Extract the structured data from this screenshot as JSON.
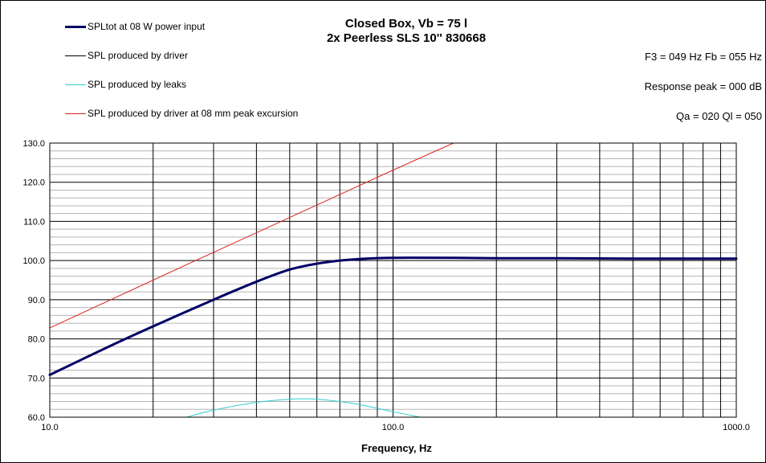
{
  "chart_data": {
    "type": "line",
    "title": "Closed Box, Vb = 75 l",
    "subtitle": "2x Peerless  SLS 10'' 830668",
    "xlabel": "Frequency, Hz",
    "ylabel": "",
    "x_scale": "log",
    "xlim": [
      10,
      1000
    ],
    "ylim": [
      60,
      130
    ],
    "x_ticks": [
      10,
      100,
      1000
    ],
    "x_tick_labels": [
      "10.0",
      "100.0",
      "1000.0"
    ],
    "y_ticks": [
      60,
      70,
      80,
      90,
      100,
      110,
      120,
      130
    ],
    "y_tick_labels": [
      "60.0",
      "70.0",
      "80.0",
      "90.0",
      "100.0",
      "110.0",
      "120.0",
      "130.0"
    ],
    "grid": true,
    "legend_position": "top-left",
    "series": [
      {
        "name": "SPLtot at 08 W power input",
        "color": "#000066",
        "x": [
          10,
          15,
          20,
          30,
          40,
          50,
          60,
          70,
          80,
          100,
          150,
          200,
          300,
          500,
          1000
        ],
        "y": [
          70.8,
          78.2,
          83.2,
          90.0,
          94.6,
          97.7,
          99.2,
          100.0,
          100.4,
          100.7,
          100.7,
          100.6,
          100.6,
          100.5,
          100.5
        ]
      },
      {
        "name": "SPL produced by driver",
        "color": "#000000",
        "x": [
          10,
          15,
          20,
          30,
          40,
          50,
          60,
          70,
          80,
          100,
          150,
          200,
          300,
          500,
          1000
        ],
        "y": [
          70.8,
          78.2,
          83.2,
          90.0,
          94.6,
          97.7,
          99.2,
          100.0,
          100.4,
          100.7,
          100.7,
          100.6,
          100.6,
          100.5,
          100.5
        ]
      },
      {
        "name": "SPL produced by leaks",
        "color": "#33cccc",
        "x": [
          25,
          30,
          40,
          50,
          55,
          60,
          70,
          80,
          100,
          120
        ],
        "y": [
          60.0,
          61.8,
          63.8,
          64.6,
          64.7,
          64.6,
          64.0,
          63.2,
          61.4,
          60.0
        ]
      },
      {
        "name": "SPL produced by driver at 08 mm peak excursion",
        "color": "#dd2222",
        "x": [
          10,
          20,
          30,
          50,
          100,
          150
        ],
        "y": [
          82.8,
          95.0,
          102.1,
          111.0,
          123.1,
          130.0
        ]
      }
    ]
  },
  "info": {
    "f3_fb": "F3 = 049 Hz  Fb = 055 Hz",
    "response_peak": "Response peak = 000 dB",
    "qa_ql": "Qa = 020  Ql = 050"
  }
}
